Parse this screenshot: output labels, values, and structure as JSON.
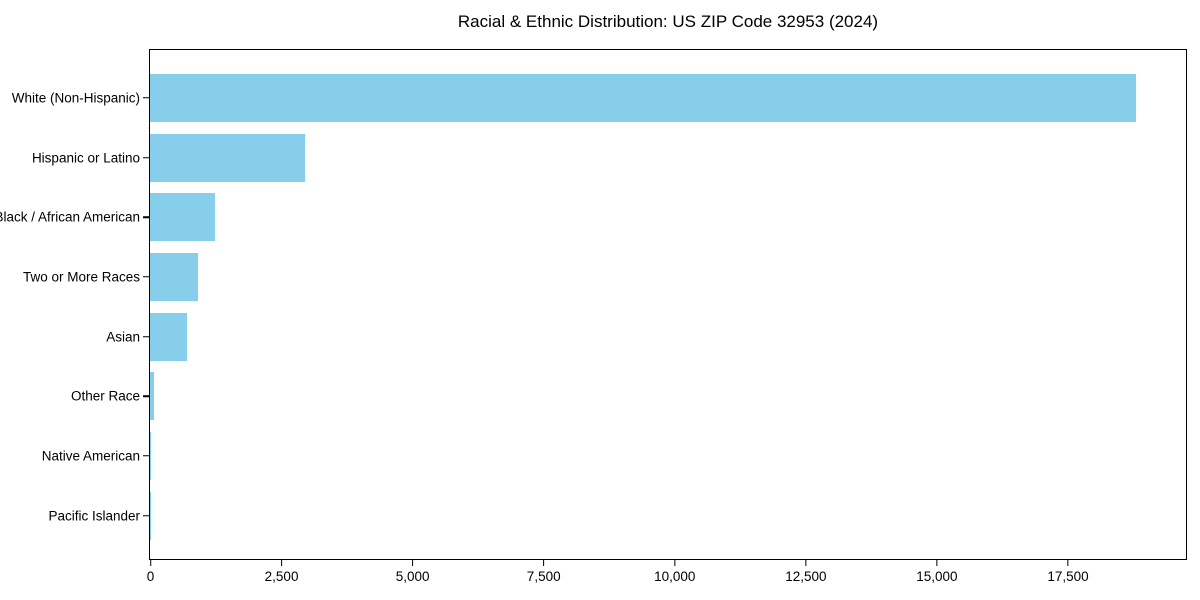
{
  "chart_data": {
    "type": "bar",
    "orientation": "horizontal",
    "title": "Racial & Ethnic Distribution: US ZIP Code 32953 (2024)",
    "categories": [
      "White (Non-Hispanic)",
      "Hispanic or Latino",
      "Black / African American",
      "Two or More Races",
      "Asian",
      "Other Race",
      "Native American",
      "Pacific Islander"
    ],
    "values": [
      18800,
      2950,
      1240,
      915,
      700,
      80,
      20,
      10
    ],
    "xlabel": "",
    "ylabel": "",
    "xlim": [
      0,
      19760
    ],
    "xticks": [
      0,
      2500,
      5000,
      7500,
      10000,
      12500,
      15000,
      17500
    ],
    "xtick_labels": [
      "0",
      "2,500",
      "5,000",
      "7,500",
      "10,000",
      "12,500",
      "15,000",
      "17,500"
    ],
    "bar_color": "#87CEEB",
    "axis_color": "#000000",
    "grid": false,
    "legend": null
  }
}
